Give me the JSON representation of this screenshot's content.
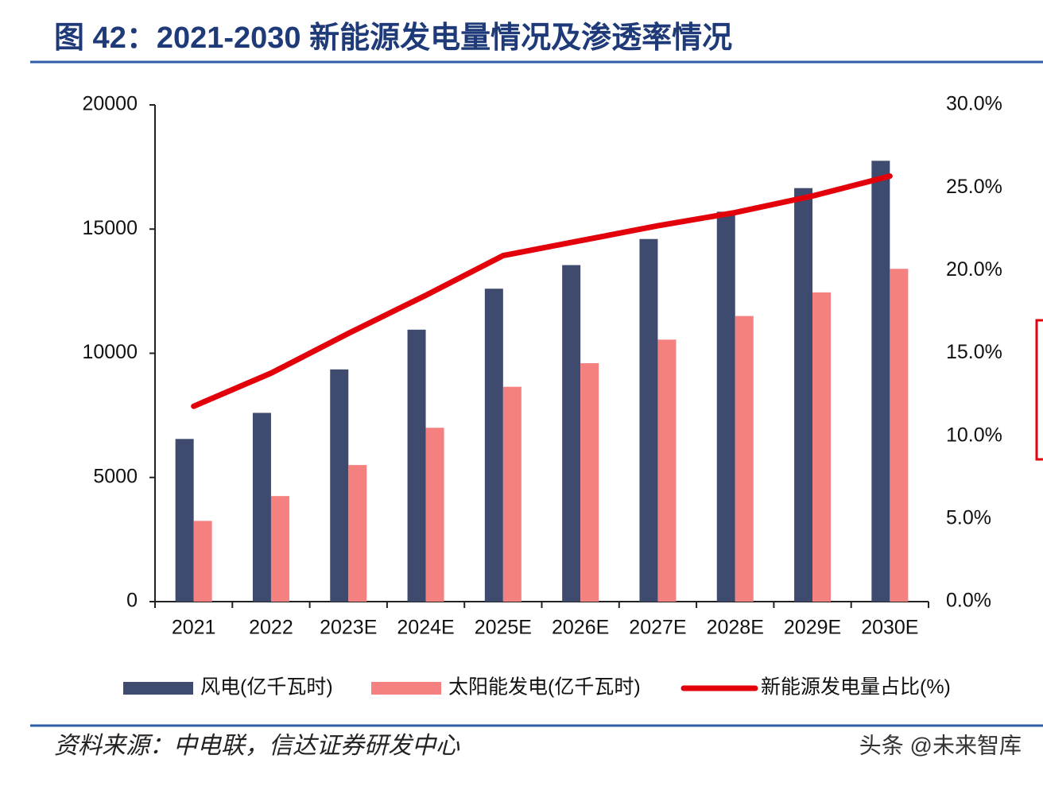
{
  "chart_data": {
    "type": "bar",
    "title": "图 42：2021-2030 新能源发电量情况及渗透率情况",
    "source": "资料来源：中电联，信达证券研发中心",
    "watermark": "头条 @未来智库",
    "categories": [
      "2021",
      "2022",
      "2023E",
      "2024E",
      "2025E",
      "2026E",
      "2027E",
      "2028E",
      "2029E",
      "2030E"
    ],
    "series": [
      {
        "name": "风电(亿千瓦时)",
        "color": "#3f4b6e",
        "type": "bar",
        "values": [
          6550,
          7600,
          9350,
          10950,
          12600,
          13550,
          14600,
          15700,
          16650,
          17750
        ]
      },
      {
        "name": "太阳能发电(亿千瓦时)",
        "color": "#f4807f",
        "type": "bar",
        "values": [
          3250,
          4250,
          5500,
          7000,
          8650,
          9600,
          10550,
          11500,
          12450,
          13400
        ]
      },
      {
        "name": "新能源发电量占比(%)",
        "color": "#e3000b",
        "type": "line",
        "axis": "y2",
        "values": [
          11.8,
          13.8,
          16.2,
          18.5,
          20.9,
          21.8,
          22.7,
          23.5,
          24.5,
          25.7
        ]
      }
    ],
    "ylim": [
      0,
      20000
    ],
    "yticks": [
      0,
      5000,
      10000,
      15000,
      20000
    ],
    "y2lim": [
      0,
      30
    ],
    "y2ticks": [
      {
        "value": 0,
        "label": "0.0%"
      },
      {
        "value": 5,
        "label": "5.0%"
      },
      {
        "value": 10,
        "label": "10.0%"
      },
      {
        "value": 15,
        "label": "15.0%"
      },
      {
        "value": 20,
        "label": "20.0%"
      },
      {
        "value": 25,
        "label": "25.0%"
      },
      {
        "value": 30,
        "label": "30.0%"
      }
    ],
    "grid": false,
    "legend": "bottom"
  }
}
